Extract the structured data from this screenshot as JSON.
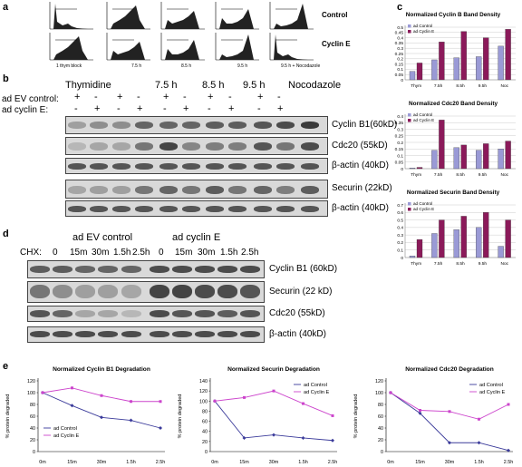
{
  "panel_a": {
    "letter": "a",
    "row_labels": [
      "Control",
      "Cyclin E"
    ],
    "timepoints": [
      "1 thym block",
      "7.5 h",
      "8.5 h",
      "9.5 h",
      "9.5 h + Nocodazole"
    ]
  },
  "panel_b": {
    "letter": "b",
    "groups": [
      "Thymidine",
      "7.5 h",
      "8.5 h",
      "9.5 h",
      "Nocodazole"
    ],
    "row1_label": "ad EV control:",
    "row2_label": "ad cyclin E:",
    "sign_plus": "+",
    "sign_minus": "-",
    "blots": [
      "Cyclin B1(60kD)",
      "Cdc20 (55kD)",
      "β-actin (40kD)",
      "Securin (22kD)",
      "β-actin (40kD)"
    ]
  },
  "panel_d": {
    "letter": "d",
    "group1": "ad EV control",
    "group2": "ad cyclin E",
    "chx_label": "CHX:",
    "times": [
      "0",
      "15m",
      "30m",
      "1.5h",
      "2.5h"
    ],
    "blots": [
      "Cyclin B1 (60kD)",
      "Securin (22 kD)",
      "Cdc20 (55kD)",
      "β-actin (40kD)"
    ]
  },
  "panel_c_letter": "c",
  "panel_e_letter": "e",
  "colors": {
    "control": "#9a9ad6",
    "cyclinE": "#8b1a5a",
    "line_control": "#3a3a9a",
    "line_cyclinE": "#cc44cc"
  },
  "chart_data": [
    {
      "type": "bar",
      "title": "Normalized Cyclin B Band Density",
      "categories": [
        "Thym",
        "7.5h",
        "8.5h",
        "9.5h",
        "Noc"
      ],
      "series": [
        {
          "name": "ad Control",
          "values": [
            0.08,
            0.19,
            0.21,
            0.22,
            0.32
          ]
        },
        {
          "name": "ad Cyclin E",
          "values": [
            0.16,
            0.36,
            0.46,
            0.4,
            0.48
          ]
        }
      ],
      "yticks": [
        "0",
        "0.05",
        "0.1",
        "0.15",
        "0.2",
        "0.25",
        "0.3",
        "0.35",
        "0.4",
        "0.45",
        "0.5"
      ],
      "ylim": [
        0,
        0.5
      ]
    },
    {
      "type": "bar",
      "title": "Normalized Cdc20 Band Density",
      "categories": [
        "Thym",
        "7.5h",
        "8.5h",
        "9.5h",
        "Noc"
      ],
      "series": [
        {
          "name": "ad Control",
          "values": [
            0.005,
            0.14,
            0.16,
            0.14,
            0.15
          ]
        },
        {
          "name": "ad Cyclin E",
          "values": [
            0.01,
            0.37,
            0.18,
            0.19,
            0.21
          ]
        }
      ],
      "yticks": [
        "0",
        "0.05",
        "0.1",
        "0.15",
        "0.2",
        "0.25",
        "0.3",
        "0.35",
        "0.4"
      ],
      "ylim": [
        0,
        0.4
      ]
    },
    {
      "type": "bar",
      "title": "Normalized Securin Band Density",
      "categories": [
        "Thym",
        "7.5h",
        "8.5h",
        "9.5h",
        "Noc"
      ],
      "series": [
        {
          "name": "ad Control",
          "values": [
            0.02,
            0.32,
            0.37,
            0.4,
            0.15
          ]
        },
        {
          "name": "ad Cyclin E",
          "values": [
            0.24,
            0.5,
            0.55,
            0.6,
            0.5
          ]
        }
      ],
      "yticks": [
        "0",
        "0.1",
        "0.2",
        "0.3",
        "0.4",
        "0.5",
        "0.6",
        "0.7"
      ],
      "ylim": [
        0,
        0.7
      ]
    },
    {
      "type": "line",
      "title": "Normalized Cyclin B1 Degradation",
      "ylabel": "% protein degraded",
      "categories": [
        "0m",
        "15m",
        "30m",
        "1.5h",
        "2.5h"
      ],
      "series": [
        {
          "name": "ad Control",
          "values": [
            100,
            78,
            58,
            53,
            40
          ]
        },
        {
          "name": "ad Cyclin E",
          "values": [
            100,
            108,
            95,
            85,
            85
          ]
        }
      ],
      "yticks": [
        "0",
        "20",
        "40",
        "60",
        "80",
        "100",
        "120"
      ],
      "ylim": [
        0,
        120
      ],
      "legend": "left"
    },
    {
      "type": "line",
      "title": "Normalized Securin Degradation",
      "ylabel": "% protein degraded",
      "categories": [
        "0m",
        "15m",
        "30m",
        "1.5h",
        "2.5h"
      ],
      "series": [
        {
          "name": "ad Control",
          "values": [
            100,
            27,
            33,
            27,
            22
          ]
        },
        {
          "name": "ad Cyclin E",
          "values": [
            100,
            107,
            120,
            95,
            71
          ]
        }
      ],
      "yticks": [
        "0",
        "20",
        "40",
        "60",
        "80",
        "100",
        "120",
        "140"
      ],
      "ylim": [
        0,
        140
      ],
      "legend": "top-right"
    },
    {
      "type": "line",
      "title": "Normalized Cdc20 Degradation",
      "ylabel": "% protein degraded",
      "categories": [
        "0m",
        "15m",
        "30m",
        "1.5h",
        "2.5h"
      ],
      "series": [
        {
          "name": "ad Control",
          "values": [
            100,
            65,
            15,
            15,
            2
          ]
        },
        {
          "name": "ad Cyclin E",
          "values": [
            100,
            70,
            68,
            55,
            80
          ]
        }
      ],
      "yticks": [
        "0",
        "20",
        "40",
        "60",
        "80",
        "100",
        "120"
      ],
      "ylim": [
        0,
        120
      ],
      "legend": "top-right"
    }
  ]
}
